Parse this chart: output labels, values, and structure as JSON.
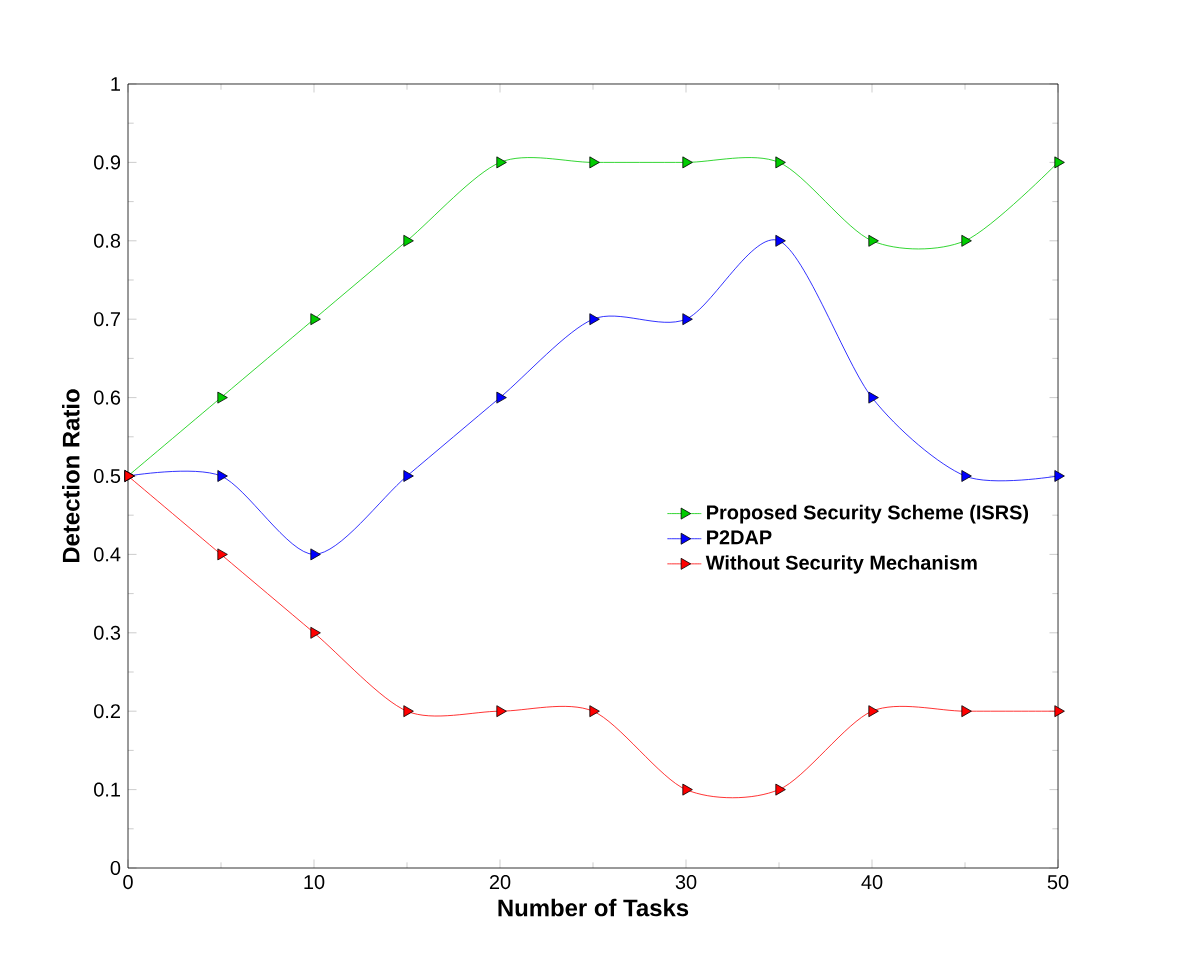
{
  "chart_data": {
    "type": "line",
    "xlabel": "Number of Tasks",
    "ylabel": "Detection Ratio",
    "x": [
      0,
      5,
      10,
      15,
      20,
      25,
      30,
      35,
      40,
      45,
      50
    ],
    "series": [
      {
        "name": "Proposed Security Scheme (ISRS)",
        "color": "#00cc00",
        "values": [
          0.5,
          0.6,
          0.7,
          0.8,
          0.9,
          0.9,
          0.9,
          0.9,
          0.8,
          0.8,
          0.9
        ]
      },
      {
        "name": "P2DAP",
        "color": "#0000ff",
        "values": [
          0.5,
          0.5,
          0.4,
          0.5,
          0.6,
          0.7,
          0.7,
          0.8,
          0.6,
          0.5,
          0.5
        ]
      },
      {
        "name": "Without Security Mechanism",
        "color": "#ff0000",
        "values": [
          0.5,
          0.4,
          0.3,
          0.2,
          0.2,
          0.2,
          0.1,
          0.1,
          0.2,
          0.2,
          0.2
        ]
      }
    ],
    "xlim": [
      0,
      50
    ],
    "xticks": [
      0,
      10,
      20,
      30,
      40,
      50
    ],
    "ylim": [
      0,
      1
    ],
    "yticks": [
      0,
      0.1,
      0.2,
      0.3,
      0.4,
      0.5,
      0.6,
      0.7,
      0.8,
      0.9,
      1
    ],
    "legend": "right",
    "marker": "triangle",
    "grid": false
  }
}
